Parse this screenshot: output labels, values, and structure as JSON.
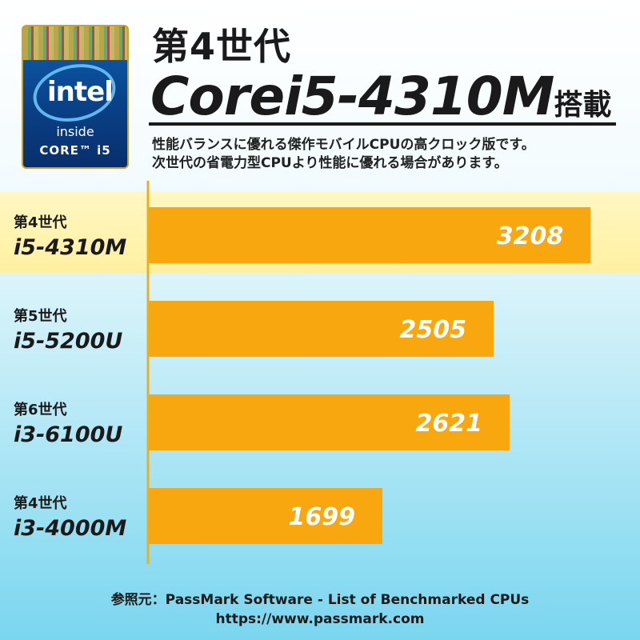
{
  "badge": {
    "brand": "intel",
    "inside": "inside",
    "product": "CORE™ i5",
    "colors": {
      "background": "#0a3f86",
      "oval": "#5fb8ef",
      "border": "#c9a227"
    }
  },
  "headline": {
    "generation": "第4世代",
    "model": "Corei5-4310M",
    "suffix": "搭載"
  },
  "description": {
    "line1": "性能バランスに優れる傑作モバイルCPUの高クロック版です。",
    "line2": "次世代の省電力型CPUより性能に優れる場合があります。"
  },
  "chart_data": {
    "type": "bar",
    "orientation": "horizontal",
    "categories": [
      {
        "generation": "第4世代",
        "model": "i5-4310M"
      },
      {
        "generation": "第5世代",
        "model": "i5-5200U"
      },
      {
        "generation": "第6世代",
        "model": "i3-6100U"
      },
      {
        "generation": "第4世代",
        "model": "i3-4000M"
      }
    ],
    "values": [
      3208,
      2505,
      2621,
      1699
    ],
    "value_labels": [
      "3208",
      "2505",
      "2621",
      "1699"
    ],
    "highlighted_index": 0,
    "xlim": [
      0,
      3450
    ],
    "grid": false,
    "colors": {
      "bar": "#f9a70f",
      "bar_text": "#ffffff",
      "axis": "#e8b020",
      "highlight": "#fff3b0"
    }
  },
  "source": {
    "line1": "参照元：PassMark Software - List of Benchmarked CPUs",
    "line2": "https://www.passmark.com"
  }
}
